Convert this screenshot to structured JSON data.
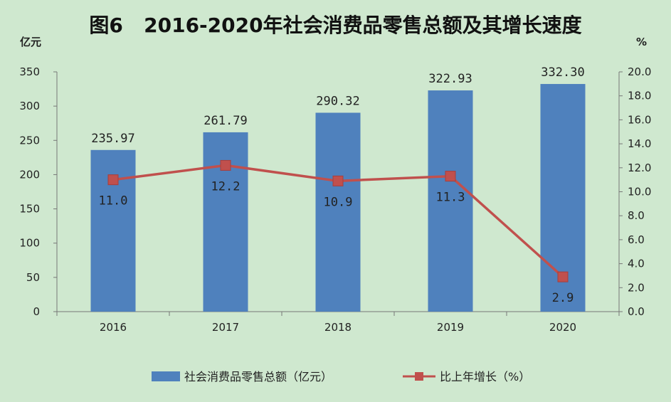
{
  "chart_data": {
    "type": "bar+line",
    "title": "图6   2016-2020年社会消费品零售总额及其增长速度",
    "categories": [
      "2016",
      "2017",
      "2018",
      "2019",
      "2020"
    ],
    "y_left": {
      "unit": "亿元",
      "range": [
        0,
        350
      ],
      "ticks": [
        "0",
        "50",
        "100",
        "150",
        "200",
        "250",
        "300",
        "350"
      ]
    },
    "y_right": {
      "unit": "%",
      "range": [
        0,
        20
      ],
      "ticks": [
        "0.0",
        "2.0",
        "4.0",
        "6.0",
        "8.0",
        "10.0",
        "12.0",
        "14.0",
        "16.0",
        "18.0",
        "20.0"
      ]
    },
    "series": [
      {
        "name": "社会消费品零售总额（亿元）",
        "type": "bar",
        "axis": "left",
        "color": "#4f81bd",
        "values": [
          235.97,
          261.79,
          290.32,
          322.93,
          332.3
        ],
        "labels": [
          "235.97",
          "261.79",
          "290.32",
          "322.93",
          "332.30"
        ]
      },
      {
        "name": "比上年增长（%）",
        "type": "line",
        "axis": "right",
        "color": "#c0504d",
        "values": [
          11.0,
          12.2,
          10.9,
          11.3,
          2.9
        ],
        "labels": [
          "11.0",
          "12.2",
          "10.9",
          "11.3",
          "2.9"
        ]
      }
    ],
    "legend_position": "bottom",
    "grid": false
  }
}
